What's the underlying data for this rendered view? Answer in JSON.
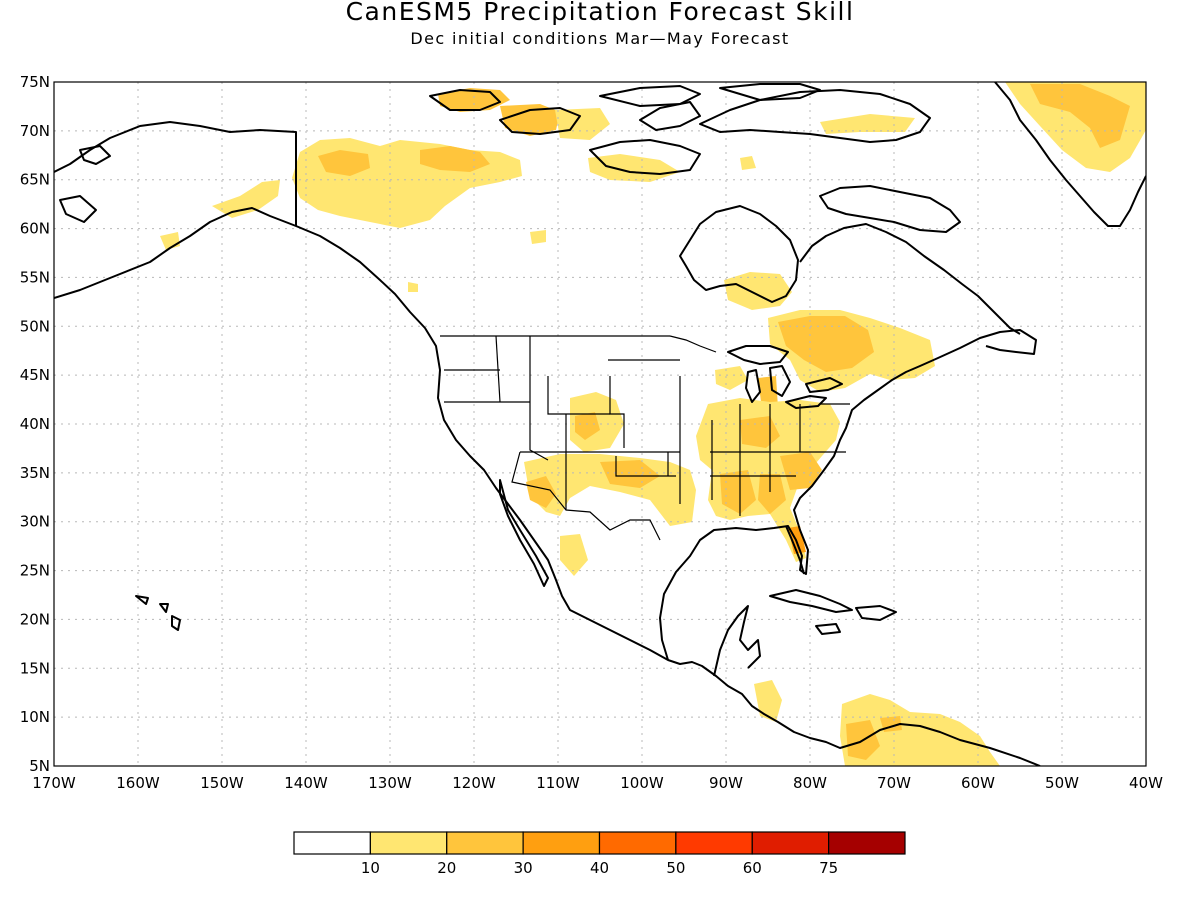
{
  "title": "CanESM5 Precipitation Forecast Skill",
  "subtitle": "Dec initial conditions  Mar—May Forecast",
  "map": {
    "lon_range": [
      -170,
      -40
    ],
    "lat_range": [
      5,
      75
    ],
    "gridlines": "dotted",
    "lat_labels": [
      "75N",
      "70N",
      "65N",
      "60N",
      "55N",
      "50N",
      "45N",
      "40N",
      "35N",
      "30N",
      "25N",
      "20N",
      "15N",
      "10N",
      "5N"
    ],
    "lon_labels": [
      "170W",
      "160W",
      "150W",
      "140W",
      "130W",
      "120W",
      "110W",
      "100W",
      "90W",
      "80W",
      "70W",
      "60W",
      "50W",
      "40W"
    ],
    "skill_regions": [
      {
        "name": "Northern Yukon / Arctic coast",
        "level": "10-20"
      },
      {
        "name": "Mackenzie / Great Bear Lake",
        "level": "20-30"
      },
      {
        "name": "Canadian Arctic Archipelago",
        "level": "10-20"
      },
      {
        "name": "Greenland east coast",
        "level": "20-30"
      },
      {
        "name": "Quebec / Great Lakes",
        "level": "20-30"
      },
      {
        "name": "US Southern Plains and Southeast",
        "level": "20-30"
      },
      {
        "name": "Florida",
        "level": "30-40"
      },
      {
        "name": "Northern South America",
        "level": "10-30"
      }
    ]
  },
  "colorbar": {
    "labels": [
      "10",
      "20",
      "30",
      "40",
      "50",
      "60",
      "75"
    ],
    "colors": [
      "#ffffff",
      "#ffe671",
      "#ffc53c",
      "#ff9f10",
      "#ff6a00",
      "#ff3a00",
      "#e01d00",
      "#a50000"
    ]
  }
}
